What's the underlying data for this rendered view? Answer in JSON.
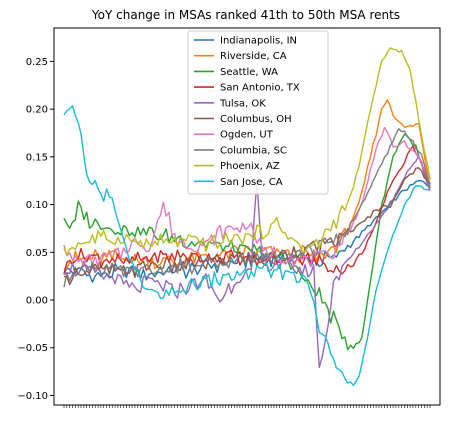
{
  "chart_data": {
    "type": "line",
    "title": "YoY change in MSAs ranked 41th to 50th MSA rents",
    "xlabel": "",
    "ylabel": "",
    "n_points": 130,
    "ylim": [
      -0.11,
      0.285
    ],
    "yticks": [
      -0.1,
      -0.05,
      0.0,
      0.05,
      0.1,
      0.15,
      0.2,
      0.25
    ],
    "ytick_labels": [
      "−0.10",
      "−0.05",
      "0.00",
      "0.05",
      "0.10",
      "0.15",
      "0.20",
      "0.25"
    ],
    "legend_position": "upper center",
    "grid": false,
    "series": [
      {
        "name": "Indianapolis, IN",
        "color": "#1f77b4",
        "keypoints": [
          [
            0,
            0.03
          ],
          [
            5,
            0.03
          ],
          [
            10,
            0.025
          ],
          [
            20,
            0.03
          ],
          [
            30,
            0.028
          ],
          [
            40,
            0.03
          ],
          [
            50,
            0.035
          ],
          [
            60,
            0.04
          ],
          [
            70,
            0.045
          ],
          [
            80,
            0.045
          ],
          [
            90,
            0.04
          ],
          [
            95,
            0.045
          ],
          [
            100,
            0.055
          ],
          [
            105,
            0.07
          ],
          [
            110,
            0.085
          ],
          [
            115,
            0.1
          ],
          [
            120,
            0.115
          ],
          [
            125,
            0.125
          ],
          [
            129,
            0.12
          ]
        ]
      },
      {
        "name": "Riverside, CA",
        "color": "#ff7f0e",
        "keypoints": [
          [
            0,
            0.04
          ],
          [
            10,
            0.045
          ],
          [
            20,
            0.045
          ],
          [
            30,
            0.04
          ],
          [
            40,
            0.04
          ],
          [
            50,
            0.045
          ],
          [
            60,
            0.05
          ],
          [
            70,
            0.05
          ],
          [
            80,
            0.05
          ],
          [
            90,
            0.045
          ],
          [
            95,
            0.055
          ],
          [
            100,
            0.075
          ],
          [
            104,
            0.1
          ],
          [
            108,
            0.15
          ],
          [
            112,
            0.2
          ],
          [
            114,
            0.21
          ],
          [
            116,
            0.195
          ],
          [
            120,
            0.18
          ],
          [
            125,
            0.185
          ],
          [
            129,
            0.12
          ]
        ]
      },
      {
        "name": "Seattle, WA",
        "color": "#2ca02c",
        "keypoints": [
          [
            0,
            0.088
          ],
          [
            3,
            0.075
          ],
          [
            5,
            0.095
          ],
          [
            10,
            0.08
          ],
          [
            20,
            0.075
          ],
          [
            30,
            0.07
          ],
          [
            40,
            0.065
          ],
          [
            50,
            0.06
          ],
          [
            60,
            0.055
          ],
          [
            70,
            0.05
          ],
          [
            80,
            0.04
          ],
          [
            85,
            0.02
          ],
          [
            90,
            0.005
          ],
          [
            95,
            -0.02
          ],
          [
            100,
            -0.045
          ],
          [
            102,
            -0.05
          ],
          [
            105,
            -0.04
          ],
          [
            108,
            0.02
          ],
          [
            112,
            0.1
          ],
          [
            116,
            0.15
          ],
          [
            120,
            0.175
          ],
          [
            124,
            0.16
          ],
          [
            129,
            0.115
          ]
        ]
      },
      {
        "name": "San Antonio, TX",
        "color": "#d62728",
        "keypoints": [
          [
            0,
            0.03
          ],
          [
            3,
            0.045
          ],
          [
            10,
            0.045
          ],
          [
            20,
            0.04
          ],
          [
            30,
            0.045
          ],
          [
            40,
            0.045
          ],
          [
            50,
            0.045
          ],
          [
            60,
            0.045
          ],
          [
            70,
            0.04
          ],
          [
            80,
            0.045
          ],
          [
            90,
            0.04
          ],
          [
            95,
            0.035
          ],
          [
            100,
            0.03
          ],
          [
            105,
            0.05
          ],
          [
            110,
            0.08
          ],
          [
            115,
            0.12
          ],
          [
            120,
            0.145
          ],
          [
            123,
            0.16
          ],
          [
            126,
            0.145
          ],
          [
            129,
            0.12
          ]
        ]
      },
      {
        "name": "Tulsa, OK",
        "color": "#9467bd",
        "keypoints": [
          [
            0,
            0.035
          ],
          [
            10,
            0.03
          ],
          [
            20,
            0.02
          ],
          [
            25,
            0.01
          ],
          [
            30,
            0.02
          ],
          [
            40,
            0.01
          ],
          [
            50,
            0.02
          ],
          [
            55,
            0.0
          ],
          [
            60,
            0.02
          ],
          [
            66,
            0.03
          ],
          [
            68,
            0.12
          ],
          [
            70,
            0.04
          ],
          [
            80,
            0.035
          ],
          [
            88,
            0.03
          ],
          [
            90,
            -0.07
          ],
          [
            92,
            -0.05
          ],
          [
            95,
            0.02
          ],
          [
            100,
            0.04
          ],
          [
            105,
            0.06
          ],
          [
            110,
            0.08
          ],
          [
            115,
            0.1
          ],
          [
            120,
            0.13
          ],
          [
            125,
            0.15
          ],
          [
            129,
            0.115
          ]
        ]
      },
      {
        "name": "Columbus, OH",
        "color": "#8c564b",
        "keypoints": [
          [
            0,
            0.02
          ],
          [
            5,
            0.03
          ],
          [
            10,
            0.03
          ],
          [
            20,
            0.03
          ],
          [
            30,
            0.035
          ],
          [
            40,
            0.035
          ],
          [
            50,
            0.04
          ],
          [
            60,
            0.045
          ],
          [
            70,
            0.045
          ],
          [
            80,
            0.05
          ],
          [
            90,
            0.055
          ],
          [
            95,
            0.06
          ],
          [
            100,
            0.07
          ],
          [
            105,
            0.08
          ],
          [
            110,
            0.095
          ],
          [
            115,
            0.1
          ],
          [
            120,
            0.125
          ],
          [
            125,
            0.14
          ],
          [
            129,
            0.12
          ]
        ]
      },
      {
        "name": "Ogden, UT",
        "color": "#e377c2",
        "keypoints": [
          [
            0,
            0.06
          ],
          [
            3,
            0.04
          ],
          [
            10,
            0.04
          ],
          [
            20,
            0.05
          ],
          [
            25,
            0.06
          ],
          [
            30,
            0.055
          ],
          [
            35,
            0.1
          ],
          [
            40,
            0.06
          ],
          [
            50,
            0.06
          ],
          [
            55,
            0.07
          ],
          [
            60,
            0.075
          ],
          [
            65,
            0.08
          ],
          [
            70,
            0.05
          ],
          [
            80,
            0.045
          ],
          [
            85,
            0.04
          ],
          [
            90,
            0.045
          ],
          [
            95,
            0.05
          ],
          [
            100,
            0.07
          ],
          [
            105,
            0.1
          ],
          [
            110,
            0.16
          ],
          [
            113,
            0.18
          ],
          [
            116,
            0.16
          ],
          [
            120,
            0.165
          ],
          [
            125,
            0.15
          ],
          [
            129,
            0.12
          ]
        ]
      },
      {
        "name": "Columbia, SC",
        "color": "#7f7f7f",
        "keypoints": [
          [
            0,
            0.015
          ],
          [
            3,
            0.03
          ],
          [
            10,
            0.035
          ],
          [
            20,
            0.03
          ],
          [
            30,
            0.03
          ],
          [
            40,
            0.035
          ],
          [
            50,
            0.035
          ],
          [
            60,
            0.04
          ],
          [
            70,
            0.045
          ],
          [
            80,
            0.05
          ],
          [
            90,
            0.055
          ],
          [
            95,
            0.06
          ],
          [
            100,
            0.075
          ],
          [
            105,
            0.1
          ],
          [
            110,
            0.13
          ],
          [
            115,
            0.16
          ],
          [
            118,
            0.18
          ],
          [
            122,
            0.17
          ],
          [
            126,
            0.15
          ],
          [
            129,
            0.12
          ]
        ]
      },
      {
        "name": "Phoenix, AZ",
        "color": "#bcbd22",
        "keypoints": [
          [
            0,
            0.05
          ],
          [
            5,
            0.06
          ],
          [
            10,
            0.065
          ],
          [
            20,
            0.065
          ],
          [
            30,
            0.06
          ],
          [
            40,
            0.06
          ],
          [
            50,
            0.06
          ],
          [
            60,
            0.065
          ],
          [
            70,
            0.07
          ],
          [
            75,
            0.08
          ],
          [
            80,
            0.065
          ],
          [
            85,
            0.05
          ],
          [
            90,
            0.06
          ],
          [
            95,
            0.08
          ],
          [
            100,
            0.1
          ],
          [
            104,
            0.14
          ],
          [
            108,
            0.2
          ],
          [
            112,
            0.25
          ],
          [
            116,
            0.265
          ],
          [
            119,
            0.26
          ],
          [
            122,
            0.24
          ],
          [
            125,
            0.19
          ],
          [
            129,
            0.125
          ]
        ]
      },
      {
        "name": "San Jose, CA",
        "color": "#17becf",
        "keypoints": [
          [
            0,
            0.188
          ],
          [
            3,
            0.198
          ],
          [
            5,
            0.19
          ],
          [
            8,
            0.13
          ],
          [
            10,
            0.125
          ],
          [
            13,
            0.105
          ],
          [
            15,
            0.11
          ],
          [
            18,
            0.1
          ],
          [
            20,
            0.07
          ],
          [
            25,
            0.03
          ],
          [
            30,
            0.01
          ],
          [
            35,
            0.0
          ],
          [
            40,
            0.01
          ],
          [
            50,
            0.02
          ],
          [
            60,
            0.025
          ],
          [
            70,
            0.03
          ],
          [
            80,
            0.03
          ],
          [
            85,
            0.02
          ],
          [
            88,
            0.0
          ],
          [
            90,
            -0.03
          ],
          [
            95,
            -0.06
          ],
          [
            100,
            -0.08
          ],
          [
            102,
            -0.088
          ],
          [
            104,
            -0.08
          ],
          [
            107,
            -0.04
          ],
          [
            110,
            0.01
          ],
          [
            115,
            0.06
          ],
          [
            120,
            0.1
          ],
          [
            124,
            0.12
          ],
          [
            129,
            0.115
          ]
        ]
      }
    ]
  }
}
